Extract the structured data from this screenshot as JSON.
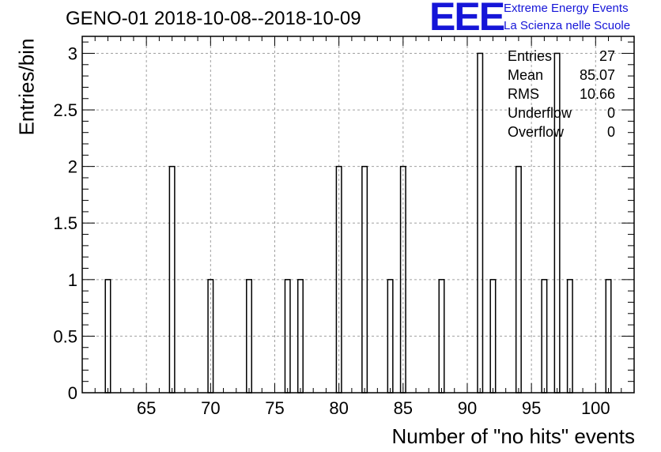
{
  "title": "GENO-01 2018-10-08--2018-10-09",
  "logo": {
    "mark": "EEE",
    "line1": "Extreme Energy Events",
    "line2": "La Scienza nelle Scuole",
    "color": "#1515d8"
  },
  "stats": [
    {
      "label": "Entries",
      "value": "27"
    },
    {
      "label": "Mean",
      "value": "85.07"
    },
    {
      "label": "RMS",
      "value": "10.66"
    },
    {
      "label": "Underflow",
      "value": "0"
    },
    {
      "label": "Overflow",
      "value": "0"
    }
  ],
  "chart_data": {
    "type": "bar",
    "style": "histogram",
    "xlabel": "Number of \"no hits\" events",
    "ylabel": "Entries/bin",
    "xlim": [
      60,
      103
    ],
    "ylim": [
      0,
      3.15
    ],
    "bin_width": 0.4,
    "grid": true,
    "bins": [
      {
        "x": 62,
        "y": 1
      },
      {
        "x": 67,
        "y": 2
      },
      {
        "x": 70,
        "y": 1
      },
      {
        "x": 73,
        "y": 1
      },
      {
        "x": 76,
        "y": 1
      },
      {
        "x": 77,
        "y": 1
      },
      {
        "x": 80,
        "y": 2
      },
      {
        "x": 82,
        "y": 2
      },
      {
        "x": 84,
        "y": 1
      },
      {
        "x": 85,
        "y": 2
      },
      {
        "x": 88,
        "y": 1
      },
      {
        "x": 91,
        "y": 3
      },
      {
        "x": 92,
        "y": 1
      },
      {
        "x": 94,
        "y": 2
      },
      {
        "x": 96,
        "y": 1
      },
      {
        "x": 97,
        "y": 3
      },
      {
        "x": 98,
        "y": 1
      },
      {
        "x": 101,
        "y": 1
      }
    ],
    "x_ticks": [
      65,
      70,
      75,
      80,
      85,
      90,
      95,
      100
    ],
    "y_ticks": [
      0,
      0.5,
      1,
      1.5,
      2,
      2.5,
      3
    ],
    "y_tick_labels": [
      "0",
      "0.5",
      "1",
      "1.5",
      "2",
      "2.5",
      "3"
    ]
  }
}
